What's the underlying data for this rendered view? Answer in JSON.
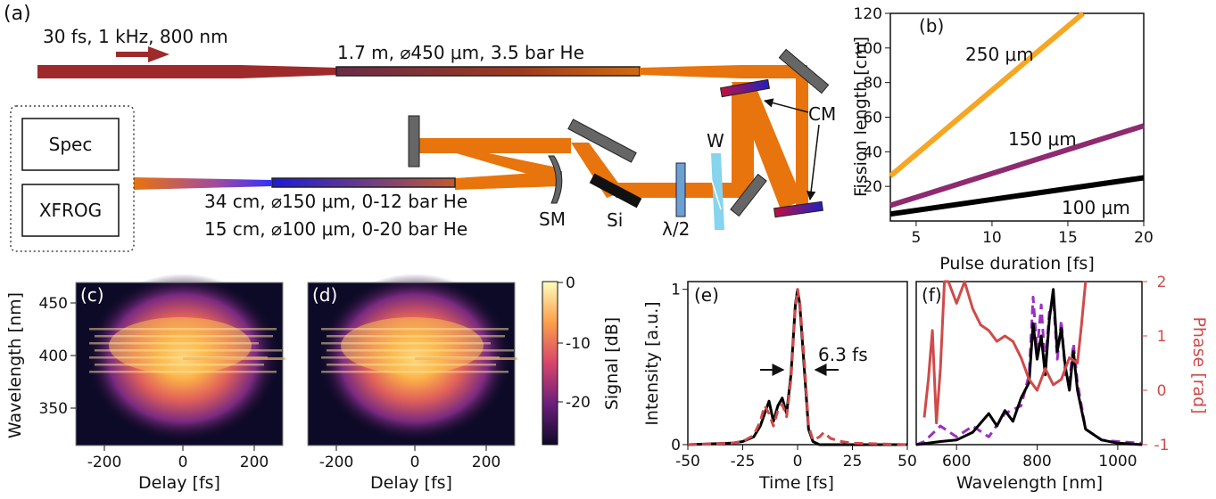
{
  "setup": {
    "panel_label": "(a)",
    "laser": "30 fs, 1 kHz, 800 nm",
    "fiber1": "1.7 m, ⌀450 μm, 3.5 bar He",
    "fiber2a": "34 cm, ⌀150 μm, 0-12 bar He",
    "fiber2b": "15 cm, ⌀100 μm, 0-20 bar He",
    "box_spec": "Spec",
    "box_xfrog": "XFROG",
    "sm": "SM",
    "si": "Si",
    "halfwave": "λ/2",
    "w": "W",
    "cm": "CM",
    "colors": {
      "beam_in": "#9e2a2b",
      "beam_out": "#e8740e"
    }
  },
  "fission": {
    "panel_label": "(b)",
    "xlabel": "Pulse duration [fs]",
    "ylabel": "Fission length [cm]",
    "xticks": [
      "5",
      "10",
      "15",
      "20"
    ],
    "yticks": [
      "20",
      "40",
      "60",
      "80",
      "100",
      "120"
    ]
  },
  "frog_c": {
    "panel_label": "(c)"
  },
  "frog_d": {
    "panel_label": "(d)"
  },
  "frog_axes": {
    "ylabel": "Wavelength [nm]",
    "xlabel": "Delay [fs]",
    "yticks": [
      "450",
      "400",
      "350"
    ],
    "xticks": [
      "-200",
      "0",
      "200"
    ]
  },
  "colorbar": {
    "label": "Signal [dB]",
    "ticks": [
      "0",
      "-10",
      "-20"
    ]
  },
  "temporal": {
    "panel_label": "(e)",
    "xlabel": "Time [fs]",
    "ylabel": "Intensity [a.u.]",
    "xticks": [
      "-50",
      "-25",
      "0",
      "25",
      "50"
    ],
    "yticks": [
      "0",
      "1"
    ],
    "annotation": "6.3 fs"
  },
  "spectral": {
    "panel_label": "(f)",
    "xlabel": "Wavelength [nm]",
    "ylabel_right": "Phase [rad]",
    "xticks": [
      "600",
      "800",
      "1000"
    ],
    "yticks_right": [
      "-1",
      "0",
      "1",
      "2"
    ]
  },
  "chart_data": [
    {
      "type": "line",
      "panel": "(b)",
      "xlabel": "Pulse duration [fs]",
      "ylabel": "Fission length [cm]",
      "xlim": [
        3.3,
        20
      ],
      "ylim": [
        0,
        120
      ],
      "series": [
        {
          "name": "250 μm",
          "color": "#f6a623",
          "x": [
            3.3,
            16
          ],
          "y": [
            26,
            120
          ]
        },
        {
          "name": "150 μm",
          "color": "#8e2a6f",
          "x": [
            3.3,
            20
          ],
          "y": [
            9,
            55
          ]
        },
        {
          "name": "100 μm",
          "color": "#000000",
          "x": [
            3.3,
            20
          ],
          "y": [
            4,
            25
          ]
        }
      ]
    },
    {
      "type": "line",
      "panel": "(e)",
      "xlabel": "Time [fs]",
      "ylabel": "Intensity [a.u.]",
      "xlim": [
        -50,
        50
      ],
      "ylim": [
        0,
        1.05
      ],
      "series": [
        {
          "color": "#000000",
          "x": [
            -50,
            -30,
            -25,
            -20,
            -17,
            -15,
            -13,
            -11,
            -9,
            -7,
            -5,
            -3,
            -1,
            0,
            1,
            3,
            5,
            7,
            10,
            15,
            25,
            50
          ],
          "y": [
            0,
            0.01,
            0.02,
            0.05,
            0.12,
            0.2,
            0.28,
            0.15,
            0.25,
            0.3,
            0.2,
            0.45,
            0.9,
            1.0,
            0.9,
            0.5,
            0.1,
            0.02,
            0,
            0,
            0,
            0
          ]
        },
        {
          "color": "#d04a4a",
          "x": [
            -50,
            -30,
            -25,
            -20,
            -17,
            -15,
            -13,
            -11,
            -9,
            -7,
            -5,
            -3,
            -1,
            0,
            1,
            3,
            5,
            7,
            10,
            12,
            15,
            20,
            25,
            50
          ],
          "y": [
            0,
            0.01,
            0.02,
            0.06,
            0.15,
            0.25,
            0.2,
            0.12,
            0.22,
            0.26,
            0.18,
            0.42,
            0.88,
            1.0,
            0.92,
            0.55,
            0.12,
            0.03,
            0.05,
            0.08,
            0.04,
            0.02,
            0.01,
            0
          ]
        }
      ]
    },
    {
      "type": "line",
      "panel": "(f)",
      "xlabel": "Wavelength [nm]",
      "ylabel_right": "Phase [rad]",
      "xlim": [
        500,
        1060
      ],
      "ylim_left": [
        0,
        1.05
      ],
      "ylim_right": [
        -1,
        2
      ],
      "series": [
        {
          "color": "#000000",
          "axis": "left",
          "x": [
            500,
            560,
            600,
            640,
            680,
            700,
            720,
            740,
            760,
            780,
            790,
            800,
            810,
            820,
            830,
            840,
            850,
            860,
            870,
            880,
            890,
            900,
            920,
            960,
            1000,
            1060
          ],
          "y": [
            0,
            0.02,
            0.03,
            0.08,
            0.2,
            0.12,
            0.22,
            0.15,
            0.3,
            0.4,
            0.78,
            0.55,
            0.7,
            0.45,
            0.8,
            1.0,
            0.6,
            0.75,
            0.5,
            0.35,
            0.6,
            0.35,
            0.1,
            0.03,
            0.01,
            0
          ]
        },
        {
          "color": "#9b30c0",
          "axis": "left",
          "x": [
            500,
            520,
            560,
            600,
            640,
            680,
            720,
            760,
            780,
            790,
            800,
            810,
            820,
            830,
            840,
            850,
            860,
            870,
            880,
            890,
            900,
            920,
            960,
            1000,
            1060
          ],
          "y": [
            0,
            0.02,
            0.12,
            0.05,
            0.12,
            0.05,
            0.2,
            0.25,
            0.45,
            0.95,
            0.6,
            0.9,
            0.5,
            0.85,
            0.95,
            0.55,
            0.8,
            0.45,
            0.4,
            0.65,
            0.4,
            0.1,
            0.03,
            0.02,
            0.01
          ]
        },
        {
          "color": "#d04a4a",
          "axis": "right",
          "x": [
            520,
            530,
            540,
            550,
            560,
            570,
            580,
            600,
            620,
            640,
            660,
            680,
            700,
            720,
            740,
            760,
            780,
            800,
            820,
            840,
            860,
            880,
            900,
            910,
            920
          ],
          "y": [
            -0.5,
            0.2,
            1.1,
            -0.6,
            0.4,
            2.2,
            2.0,
            1.6,
            2.0,
            1.5,
            1.2,
            1.1,
            0.9,
            1.0,
            0.9,
            0.6,
            0.2,
            0.0,
            0.4,
            0.1,
            0.2,
            0.6,
            0.5,
            1.2,
            2.0
          ]
        }
      ]
    }
  ]
}
